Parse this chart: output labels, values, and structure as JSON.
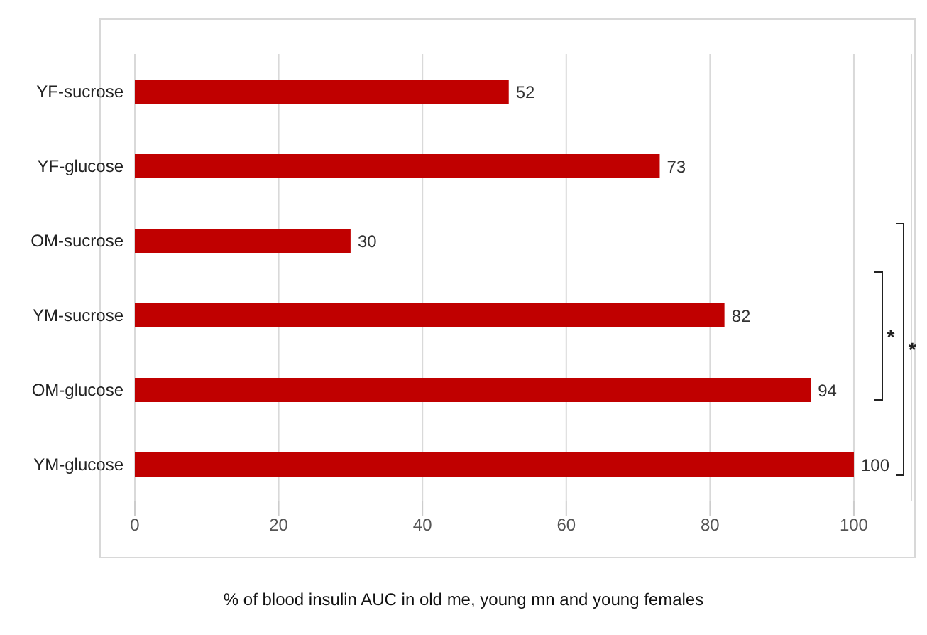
{
  "chart_data": {
    "type": "bar",
    "orientation": "horizontal",
    "categories": [
      "YF-sucrose",
      "YF-glucose",
      "OM-sucrose",
      "YM-sucrose",
      "OM-glucose",
      "YM-glucose"
    ],
    "values": [
      52,
      73,
      30,
      82,
      94,
      100
    ],
    "color": "#c00000",
    "xlabel": "% of blood insulin AUC in old me, young mn and young females",
    "xlim": [
      0,
      108
    ],
    "xticks": [
      0,
      20,
      40,
      60,
      80,
      100
    ],
    "grid": "x",
    "data_labels": true,
    "annotations": [
      "*",
      "*"
    ]
  }
}
